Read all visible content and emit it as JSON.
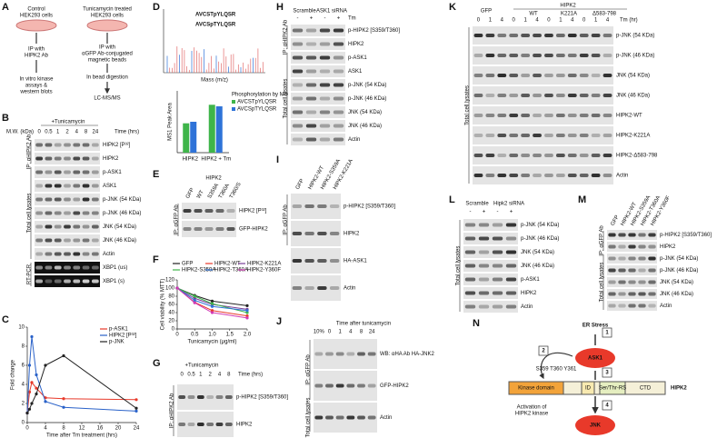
{
  "a": {
    "letter": "A",
    "control": "Control",
    "control_cells": "HEK293 cells",
    "treated": "Tunicamycin treated",
    "treated_cells": "HEK293 cells",
    "ip_left": "IP with",
    "ip_left2": "HIPK2 Ab",
    "ip_right": "IP with",
    "ip_right2": "αGFP Ab-conjugated",
    "ip_right3": "magnetic beads",
    "out_left": "In vitro kinase",
    "out_left2": "assays &",
    "out_left3": "western blots",
    "out_right": "In bead digestion",
    "ms": "LC-MS/MS"
  },
  "b": {
    "letter": "B",
    "header": "+Tunicamycin",
    "lane_title": "Time (hrs)",
    "mw": "M.W. (kDa)",
    "lanes": [
      "0",
      "0.5",
      "1",
      "2",
      "4",
      "8",
      "24"
    ],
    "rows": [
      "HIPK2 [P³²]",
      "HIPK2",
      "p-ASK1",
      "ASK1",
      "p-JNK (54 KDa)",
      "p-JNK (46 KDa)",
      "JNK (54 KDa)",
      "JNK (46 KDa)",
      "Actin",
      "XBP1 (us)",
      "XBP1 (s)"
    ],
    "sides": [
      "IP: αHIPK2 Ab",
      "Total cell lysates",
      "RT-PCR"
    ]
  },
  "c": {
    "letter": "C",
    "ylabel": "Fold change",
    "xlabel": "Time after Tm treatment (hrs)",
    "x": [
      0,
      0.5,
      1,
      2,
      4,
      8,
      24
    ],
    "xlim": [
      0,
      24
    ],
    "ylim": [
      0,
      10
    ],
    "xticks": [
      0,
      4,
      8,
      12,
      16,
      20,
      24
    ],
    "yticks": [
      0,
      2,
      4,
      6,
      8,
      10
    ],
    "series": [
      {
        "name": "p-ASK1",
        "color": "#e8392a",
        "values": [
          1,
          3.2,
          4.2,
          3.6,
          2.6,
          2.5,
          2.4
        ]
      },
      {
        "name": "HIPK2 [P³²]",
        "color": "#2a62c9",
        "values": [
          1,
          6,
          9,
          5,
          2.2,
          1.6,
          1.2
        ]
      },
      {
        "name": "p-JNK",
        "color": "#222222",
        "values": [
          1,
          1.4,
          2,
          3,
          6,
          7,
          1.5
        ]
      }
    ]
  },
  "d": {
    "letter": "D",
    "seq1": "AVCSTpYLQSR",
    "seq2": "AVCSpTYLQSR",
    "xlabel": "Mass (m/z)",
    "ylabel": "MS1 Peak Area",
    "legend_title": "Phosphorylation by MS",
    "categories": [
      "HIPK2",
      "HIPK2 + Tm"
    ],
    "ylim": [
      0,
      4
    ],
    "series": [
      {
        "name": "AVCSTpYLQSR",
        "color": "#3fb54a",
        "values": [
          1.9,
          3.1
        ]
      },
      {
        "name": "AVCSpTYLQSR",
        "color": "#2f73d8",
        "values": [
          2.0,
          3.0
        ]
      }
    ]
  },
  "e": {
    "letter": "E",
    "header": "HIPK2",
    "lanes": [
      "GFP",
      "WT",
      "S359A",
      "T360A",
      "T360/S"
    ],
    "rows": [
      "HIPK2 [P³²]",
      "GFP-HIPK2"
    ],
    "sides": [
      "IP: αGFP Ab"
    ]
  },
  "f": {
    "letter": "F",
    "ylabel": "Cell viability (% MTT)",
    "xlabel": "Tunicamycin (μg/ml)",
    "x": [
      0,
      0.5,
      1,
      2
    ],
    "xlim": [
      0,
      2
    ],
    "ylim": [
      0,
      120
    ],
    "xticks": [
      0,
      0.5,
      {
        "value": 1,
        "label": "1.0"
      },
      1.5,
      {
        "value": 2,
        "label": "2.0"
      }
    ],
    "yticks": [
      0,
      20,
      40,
      60,
      80,
      100,
      120
    ],
    "series": [
      {
        "name": "GFP",
        "color": "#222222",
        "values": [
          100,
          82,
          68,
          57
        ]
      },
      {
        "name": "HIPK2-WT",
        "color": "#e8392a",
        "values": [
          100,
          65,
          45,
          32
        ]
      },
      {
        "name": "HIPK2-K221A",
        "color": "#7a3f98",
        "values": [
          100,
          75,
          60,
          48
        ]
      },
      {
        "name": "HIPK2-S359A",
        "color": "#3fb54a",
        "values": [
          100,
          80,
          62,
          40
        ]
      },
      {
        "name": "HIPK2-T360A",
        "color": "#2f73d8",
        "values": [
          100,
          70,
          55,
          45
        ]
      },
      {
        "name": "HIPK2-Y360F",
        "color": "#d23ab5",
        "values": [
          100,
          64,
          40,
          27
        ]
      }
    ]
  },
  "g": {
    "letter": "G",
    "header": "+Tunicamycin",
    "lane_title": "Time (hrs)",
    "lanes": [
      "0",
      "0.5",
      "1",
      "2",
      "4",
      "8"
    ],
    "rows": [
      "p-HIPK2 [S359/T360]",
      "HIPK2"
    ],
    "sides": [
      "IP: αHIPK2 Ab"
    ]
  },
  "h": {
    "letter": "H",
    "group1": "Scramble",
    "group2": "ASK1 siRNA",
    "tm": "Tm",
    "lanes": [
      "-",
      "+",
      "-",
      "+"
    ],
    "rows": [
      "p-HIPK2 [S359/T360]",
      "HIPK2",
      "p-ASK1",
      "ASK1",
      "p-JNK (54 KDa)",
      "p-JNK (46 KDa)",
      "JNK (54 KDa)",
      "JNK (46 KDa)",
      "Actin"
    ],
    "sides": [
      "IP: αHIPK2 Ab",
      "Total cell lysates"
    ]
  },
  "i": {
    "letter": "I",
    "lanes": [
      "GFP",
      "HIPK2-WT",
      "HIPK2-S359A",
      "HIPK2-K221A"
    ],
    "rows": [
      "p-HIPK2 [S359/T360]",
      "HIPK2",
      "HA-ASK1",
      "Actin"
    ],
    "sides": [
      "IP: αGFP Ab"
    ]
  },
  "j": {
    "letter": "J",
    "header": "Time after tunicamycin",
    "lanes": [
      "10%",
      "0",
      "1",
      "4",
      "8",
      "24"
    ],
    "rows": [
      "WB: αHA Ab HA-JNK2",
      "GFP-HIPK2",
      "Actin"
    ],
    "sides": [
      "IP: αGFP Ab",
      "Total cell lysates"
    ]
  },
  "k": {
    "letter": "K",
    "gfp": "GFP",
    "hipk2": "HIPK2",
    "wt": "WT",
    "k221a": "K221A",
    "del": "Δ583-798",
    "tm": "Tm (hr)",
    "lanes": [
      "0",
      "1",
      "4",
      "0",
      "1",
      "4",
      "0",
      "1",
      "4",
      "0",
      "1",
      "4"
    ],
    "rows": [
      "p-JNK (54 KDa)",
      "p-JNK (46 KDa)",
      "JNK (54 KDa)",
      "JNK (46 KDa)",
      "HIPK2-WT",
      "HIPK2-K221A",
      "HIPK2-Δ583-798",
      "Actin"
    ],
    "sides": [
      "Total cell lysates"
    ]
  },
  "l": {
    "letter": "L",
    "group1": "Scramble",
    "group2": "Hipk2 siRNA",
    "lanes": [
      "-",
      "+",
      "-",
      "+"
    ],
    "rows": [
      "p-JNK (54 KDa)",
      "p-JNK (46 KDa)",
      "JNK (54 KDa)",
      "JNK (46 KDa)",
      "p-ASK1",
      "HIPK2",
      "Actin"
    ],
    "sides": [
      "Total cell lysates"
    ]
  },
  "m": {
    "letter": "M",
    "lanes": [
      "GFP",
      "HIPK2-WT",
      "HIPK2-S359A",
      "HIPK2-T360A",
      "HIPK2-Y360F"
    ],
    "rows": [
      "p-HIPK2 [S359/T360]",
      "HIPK2",
      "p-JNK (54 KDa)",
      "p-JNK (46 KDa)",
      "JNK (54 KDa)",
      "JNK (46 KDa)",
      "Actin"
    ],
    "sides": [
      "IP: αGFP Ab",
      "Total cell lysates"
    ]
  },
  "n": {
    "letter": "N",
    "er": "ER Stress",
    "ask1": "ASK1",
    "kinase": "Kinase domain",
    "id": "ID",
    "srs": "Ser/Thr-RS",
    "ctd": "CTD",
    "hipk2": "HIPK2",
    "jnk": "JNK",
    "sites": "S359 T360 Y361",
    "activation": "Activation of",
    "activation2": "HIPK2 kinase",
    "steps": [
      "1",
      "2",
      "3",
      "4"
    ]
  }
}
